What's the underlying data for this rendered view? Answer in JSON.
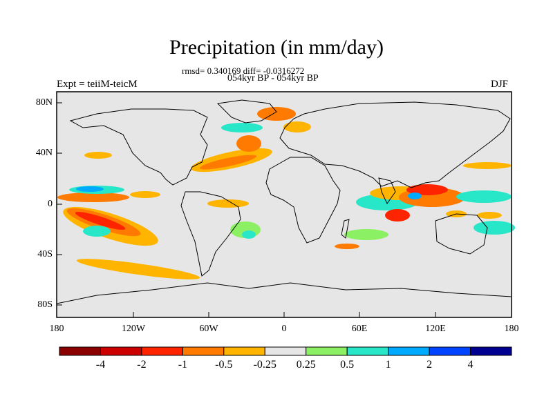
{
  "title": "Precipitation (in mm/day)",
  "stats": "rmsd= 0.340169 diff= -0.0316272",
  "period": "054kyr BP - 054kyr BP",
  "experiment": "Expt = teiiM-teicM",
  "season": "DJF",
  "map": {
    "latitude_ticks": [
      "80N",
      "40N",
      "0",
      "40S",
      "80S"
    ],
    "longitude_ticks": [
      "180",
      "120W",
      "60W",
      "0",
      "60E",
      "120E",
      "180"
    ],
    "colors": {
      "background": "#e6e6e6",
      "coastline": "#000000"
    }
  },
  "colorbar": {
    "labels": [
      "-4",
      "-2",
      "-1",
      "-0.5",
      "-0.25",
      "0.25",
      "0.5",
      "1",
      "2",
      "4"
    ],
    "colors": [
      "#8b0000",
      "#cd0000",
      "#ff2400",
      "#ff7a00",
      "#ffb400",
      "#e6e6e6",
      "#8cf064",
      "#28e6c8",
      "#00aaff",
      "#0044ff",
      "#000090"
    ]
  }
}
